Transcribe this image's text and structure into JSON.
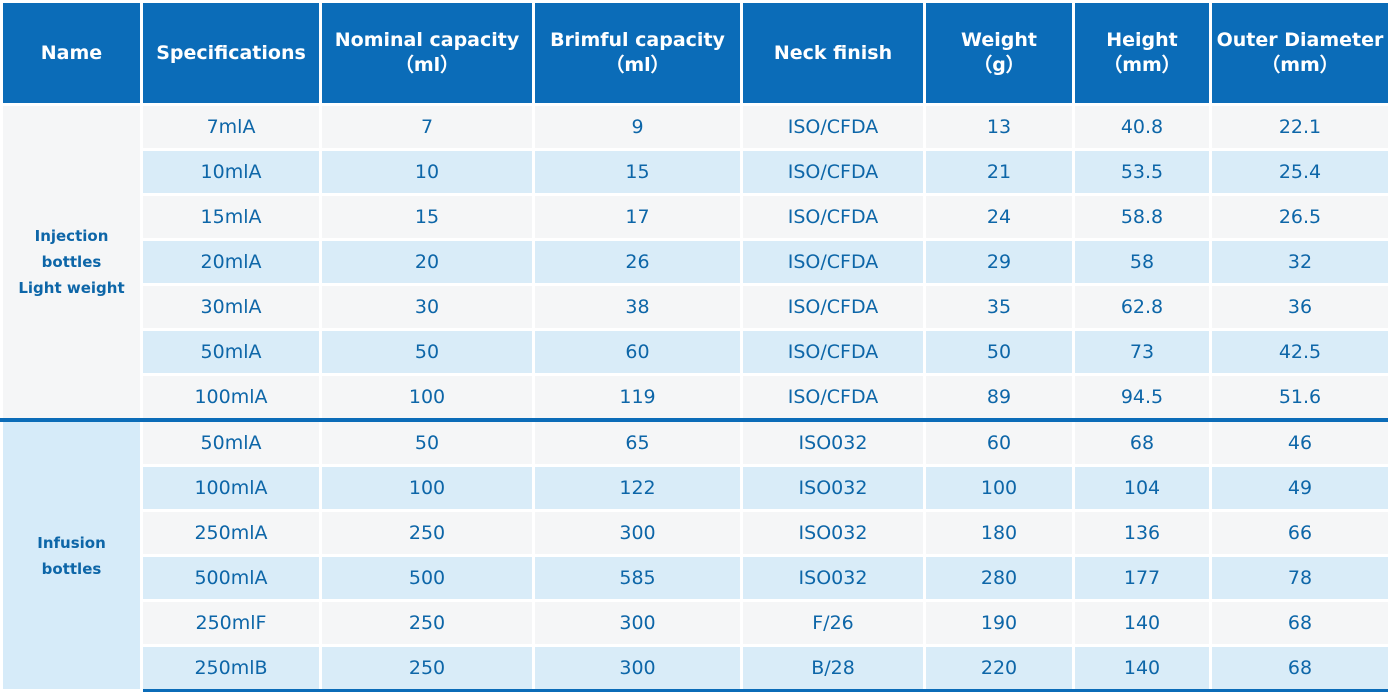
{
  "header": [
    [
      "Name"
    ],
    [
      "Specifications"
    ],
    [
      "Nominal capacity",
      "（ml）"
    ],
    [
      "Brimful capacity",
      "（ml）"
    ],
    [
      "Neck finish"
    ],
    [
      "Weight",
      "（g）"
    ],
    [
      "Height",
      "（mm）"
    ],
    [
      "Outer Diameter",
      "（mm）"
    ]
  ],
  "groups": [
    {
      "name": [
        "Injection",
        "bottles",
        "Light weight"
      ],
      "rows": [
        [
          "7mlA",
          "7",
          "9",
          "ISO/CFDA",
          "13",
          "40.8",
          "22.1"
        ],
        [
          "10mlA",
          "10",
          "15",
          "ISO/CFDA",
          "21",
          "53.5",
          "25.4"
        ],
        [
          "15mlA",
          "15",
          "17",
          "ISO/CFDA",
          "24",
          "58.8",
          "26.5"
        ],
        [
          "20mlA",
          "20",
          "26",
          "ISO/CFDA",
          "29",
          "58",
          "32"
        ],
        [
          "30mlA",
          "30",
          "38",
          "ISO/CFDA",
          "35",
          "62.8",
          "36"
        ],
        [
          "50mlA",
          "50",
          "60",
          "ISO/CFDA",
          "50",
          "73",
          "42.5"
        ],
        [
          "100mlA",
          "100",
          "119",
          "ISO/CFDA",
          "89",
          "94.5",
          "51.6"
        ]
      ]
    },
    {
      "name": [
        "Infusion",
        "bottles"
      ],
      "rows": [
        [
          "50mlA",
          "50",
          "65",
          "ISO032",
          "60",
          "68",
          "46"
        ],
        [
          "100mlA",
          "100",
          "122",
          "ISO032",
          "100",
          "104",
          "49"
        ],
        [
          "250mlA",
          "250",
          "300",
          "ISO032",
          "180",
          "136",
          "66"
        ],
        [
          "500mlA",
          "500",
          "585",
          "ISO032",
          "280",
          "177",
          "78"
        ],
        [
          "250mlF",
          "250",
          "300",
          "F/26",
          "190",
          "140",
          "68"
        ],
        [
          "250mlB",
          "250",
          "300",
          "B/28",
          "220",
          "140",
          "68"
        ]
      ]
    }
  ]
}
